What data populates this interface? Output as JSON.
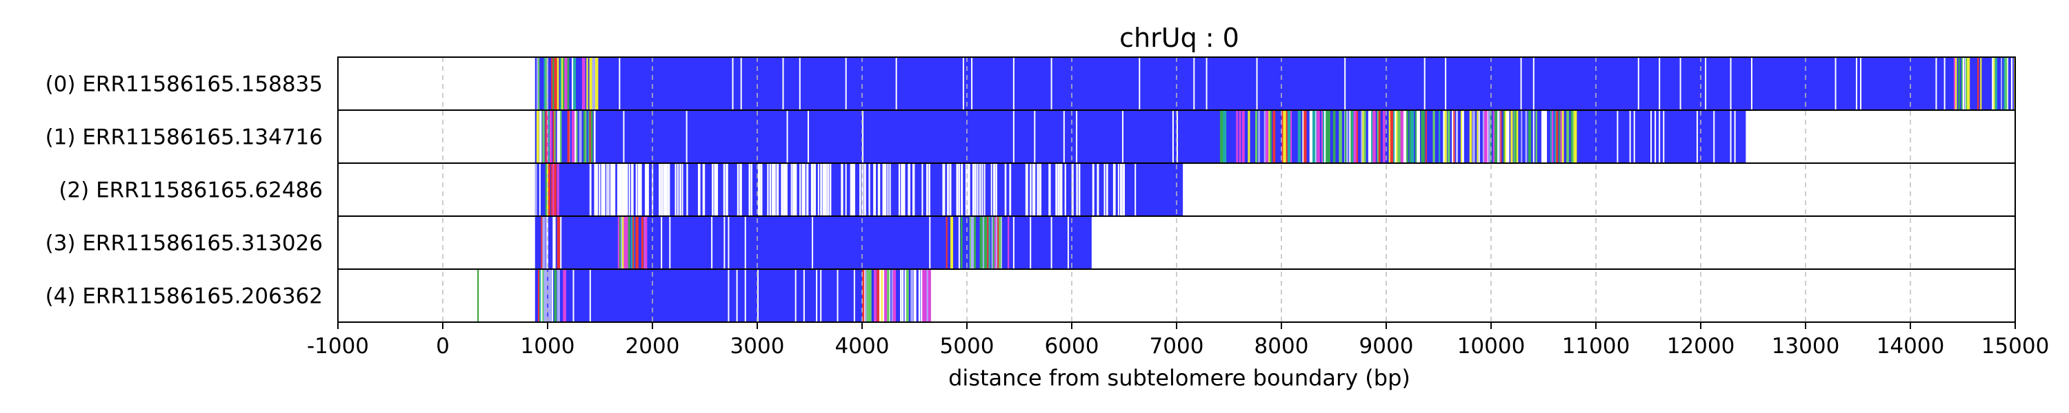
{
  "chart_data": {
    "type": "heatmap",
    "title": "chrUq : 0",
    "xlabel": "distance from subtelomere boundary (bp)",
    "ylabel": "",
    "xlim": [
      -1000,
      15000
    ],
    "x_ticks": [
      -1000,
      0,
      1000,
      2000,
      3000,
      4000,
      5000,
      6000,
      7000,
      8000,
      9000,
      10000,
      11000,
      12000,
      13000,
      14000,
      15000
    ],
    "grid": {
      "x": true,
      "style": "dashed"
    },
    "reads": [
      {
        "label": "(0) ERR11586165.158835",
        "start": 880,
        "end": 15000,
        "colored": [
          [
            880,
            1500
          ],
          [
            14400,
            15000
          ]
        ],
        "white_dense": [],
        "extra_lines": []
      },
      {
        "label": "(1) ERR11586165.134716",
        "start": 880,
        "end": 12430,
        "colored": [
          [
            880,
            1450
          ],
          [
            7400,
            10800
          ]
        ],
        "white_dense": [],
        "extra_lines": []
      },
      {
        "label": "(2) ERR11586165.62486",
        "start": 880,
        "end": 7060,
        "colored": [
          [
            880,
            1100
          ]
        ],
        "white_dense": [
          [
            1400,
            6500
          ]
        ],
        "extra_lines": []
      },
      {
        "label": "(3) ERR11586165.313026",
        "start": 880,
        "end": 6190,
        "colored": [
          [
            880,
            1100
          ],
          [
            1600,
            2000
          ],
          [
            4800,
            5450
          ]
        ],
        "white_dense": [],
        "extra_lines": []
      },
      {
        "label": "(4) ERR11586165.206362",
        "start": 880,
        "end": 4660,
        "colored": [
          [
            880,
            1150
          ],
          [
            4000,
            4660
          ]
        ],
        "white_dense": [
          [
            3900,
            4660
          ]
        ],
        "extra_lines": [
          {
            "x": 330,
            "color": "#2ca02c"
          }
        ]
      }
    ],
    "colors": {
      "base": "#3333ff",
      "white": "#ffffff",
      "green": "#33aa55",
      "light_green": "#66cc66",
      "teal": "#22aaaa",
      "yellow": "#eeee33",
      "magenta": "#dd44dd",
      "red": "#ee3333",
      "pale_blue": "#aaaaff",
      "grid": "#bbbbbb",
      "frame": "#000000"
    }
  }
}
